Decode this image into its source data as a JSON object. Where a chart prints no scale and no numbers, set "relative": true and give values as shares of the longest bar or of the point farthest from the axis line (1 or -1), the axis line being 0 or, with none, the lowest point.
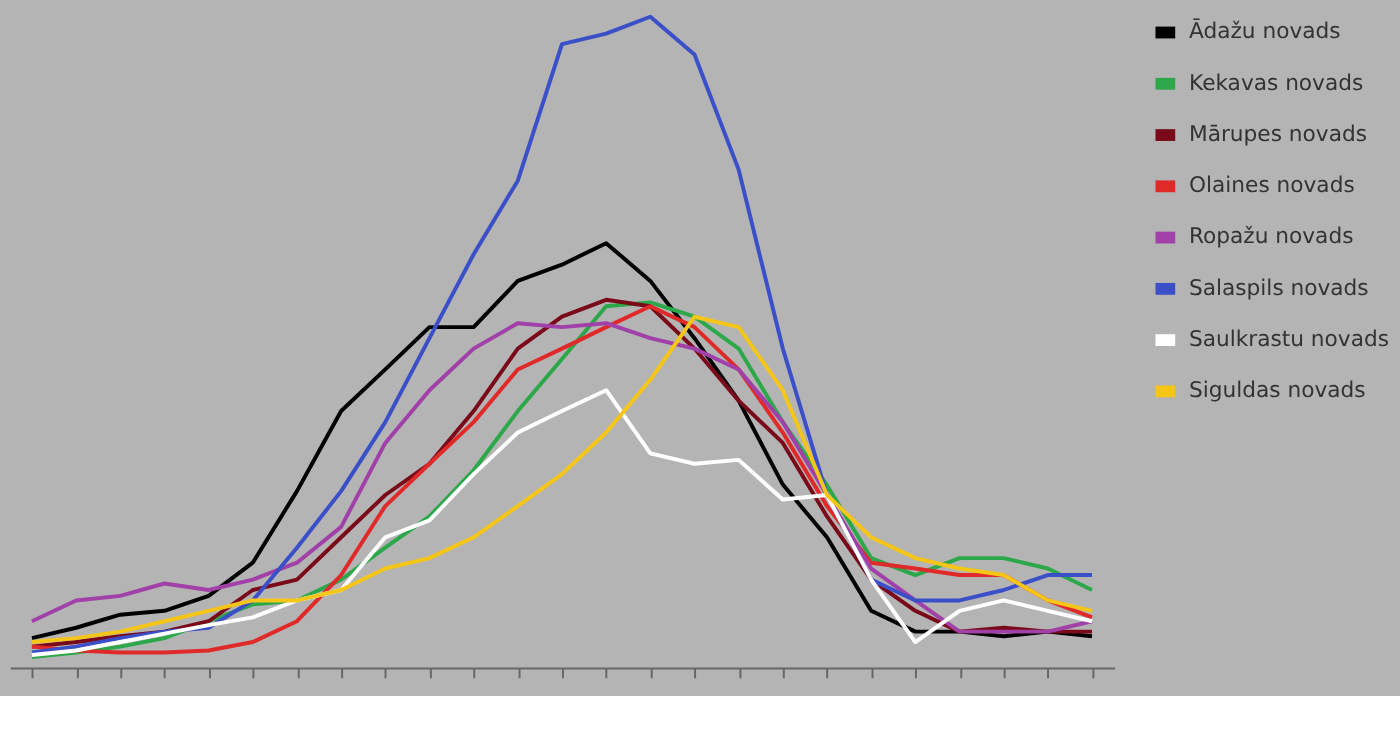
{
  "chart_data": {
    "type": "line",
    "relative": true,
    "legend": "right",
    "line_style": "solid",
    "marker": "none",
    "categories": [
      null,
      null,
      null,
      null,
      null,
      null,
      null,
      null,
      null,
      null,
      null,
      null,
      null,
      null,
      null,
      null,
      null,
      null,
      null,
      null,
      null,
      null,
      null,
      null,
      null
    ],
    "series": [
      {
        "name": "Ādažu novads",
        "color": "#000000",
        "values": [
          0.045,
          0.061,
          0.081,
          0.087,
          0.11,
          0.161,
          0.271,
          0.394,
          0.458,
          0.523,
          0.523,
          0.594,
          0.619,
          0.652,
          0.594,
          0.506,
          0.41,
          0.281,
          0.2,
          0.087,
          0.055,
          0.055,
          0.048,
          0.055,
          0.048
        ]
      },
      {
        "name": "Kekavas novads",
        "color": "#2ca84a",
        "values": [
          0.016,
          0.023,
          0.032,
          0.045,
          0.071,
          0.097,
          0.103,
          0.135,
          0.184,
          0.232,
          0.303,
          0.394,
          0.474,
          0.555,
          0.561,
          0.539,
          0.49,
          0.377,
          0.28,
          0.168,
          0.142,
          0.168,
          0.168,
          0.152,
          0.119
        ]
      },
      {
        "name": "Mārupes novads",
        "color": "#7a0a1a",
        "values": [
          0.032,
          0.039,
          0.048,
          0.055,
          0.071,
          0.119,
          0.135,
          0.2,
          0.265,
          0.313,
          0.394,
          0.49,
          0.539,
          0.565,
          0.555,
          0.49,
          0.41,
          0.345,
          0.232,
          0.135,
          0.087,
          0.055,
          0.061,
          0.055,
          0.055
        ]
      },
      {
        "name": "Olaines novads",
        "color": "#e02a2a",
        "values": [
          0.032,
          0.026,
          0.023,
          0.023,
          0.026,
          0.039,
          0.071,
          0.142,
          0.248,
          0.313,
          0.377,
          0.458,
          0.49,
          0.523,
          0.555,
          0.523,
          0.458,
          0.361,
          0.248,
          0.161,
          0.152,
          0.142,
          0.142,
          0.103,
          0.077
        ]
      },
      {
        "name": "Ropažu novads",
        "color": "#a040a8",
        "values": [
          0.071,
          0.103,
          0.11,
          0.129,
          0.119,
          0.135,
          0.161,
          0.216,
          0.345,
          0.426,
          0.49,
          0.529,
          0.523,
          0.529,
          0.506,
          0.49,
          0.458,
          0.377,
          0.265,
          0.152,
          0.103,
          0.055,
          0.055,
          0.055,
          0.071
        ]
      },
      {
        "name": "Salaspils novads",
        "color": "#3a4fc8",
        "values": [
          0.023,
          0.032,
          0.045,
          0.055,
          0.061,
          0.103,
          0.184,
          0.271,
          0.377,
          0.506,
          0.635,
          0.748,
          0.958,
          0.974,
          1,
          0.942,
          0.765,
          0.49,
          0.265,
          0.135,
          0.103,
          0.103,
          0.119,
          0.142,
          0.142
        ]
      },
      {
        "name": "Saulkrastu novads",
        "color": "#ffffff",
        "values": [
          0.019,
          0.026,
          0.039,
          0.052,
          0.065,
          0.077,
          0.103,
          0.119,
          0.2,
          0.226,
          0.297,
          0.361,
          0.394,
          0.426,
          0.329,
          0.313,
          0.319,
          0.258,
          0.265,
          0.135,
          0.039,
          0.087,
          0.103,
          0.087,
          0.071
        ]
      },
      {
        "name": "Siguldas novads",
        "color": "#f5c518",
        "values": [
          0.039,
          0.045,
          0.055,
          0.071,
          0.087,
          0.103,
          0.103,
          0.119,
          0.152,
          0.168,
          0.2,
          0.248,
          0.297,
          0.361,
          0.442,
          0.539,
          0.523,
          0.426,
          0.265,
          0.2,
          0.168,
          0.152,
          0.142,
          0.103,
          0.087
        ]
      }
    ]
  }
}
